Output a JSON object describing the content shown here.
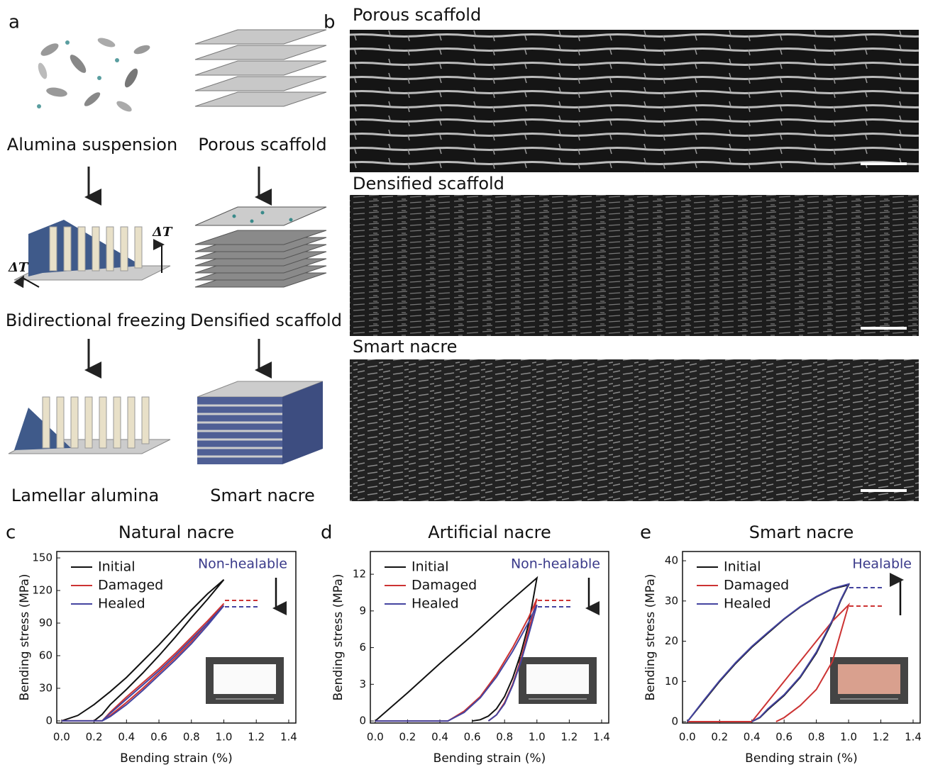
{
  "figure": {
    "panel_labels": [
      "a",
      "b",
      "c",
      "d",
      "e"
    ],
    "schematic_captions": [
      "Alumina suspension",
      "Porous scaffold",
      "Bidirectional freezing",
      "Densified scaffold",
      "Lamellar alumina",
      "Smart nacre"
    ],
    "delta_t": [
      "ΔT",
      "ΔT"
    ],
    "sem_titles": [
      "Porous scaffold",
      "Densified scaffold",
      "Smart nacre"
    ]
  },
  "chart_data": [
    {
      "type": "line",
      "title": "Natural nacre",
      "x_label": "Bending strain (%)",
      "y_label": "Bending stress (MPa)",
      "annotation": "Non-healable",
      "trend": "down",
      "xlim": [
        -0.03,
        1.444
      ],
      "ylim": [
        -2,
        155.9
      ],
      "xticks": [
        {
          "value": 0,
          "label": "0.0"
        },
        0.2,
        0.4,
        0.6,
        0.8,
        {
          "value": 1,
          "label": "1.0"
        },
        1.2,
        1.4
      ],
      "yticks": [
        0,
        30,
        60,
        90,
        120,
        150
      ],
      "series": [
        {
          "name": "Initial",
          "color": "#111111",
          "x": [
            0,
            0.1,
            0.2,
            0.3,
            0.4,
            0.5,
            0.6,
            0.7,
            0.8,
            0.9,
            1.0,
            0.9,
            0.8,
            0.7,
            0.6,
            0.5,
            0.4,
            0.3,
            0.25,
            0.2
          ],
          "values": [
            0,
            5,
            15,
            27,
            40,
            55,
            70,
            86,
            102,
            117,
            130,
            112,
            95,
            77,
            60,
            44,
            29,
            15,
            6,
            0
          ]
        },
        {
          "name": "Damaged",
          "color": "#cc3333",
          "x": [
            0,
            0.25,
            0.3,
            0.4,
            0.5,
            0.6,
            0.7,
            0.8,
            0.9,
            1.0,
            0.9,
            0.8,
            0.7,
            0.6,
            0.5,
            0.4,
            0.3,
            0.25
          ],
          "values": [
            0,
            0,
            8,
            22,
            35,
            48,
            62,
            77,
            92,
            108,
            90,
            73,
            58,
            44,
            30,
            17,
            5,
            0
          ]
        },
        {
          "name": "Healed",
          "color": "#4444a0",
          "x": [
            0,
            0.25,
            0.3,
            0.4,
            0.5,
            0.6,
            0.7,
            0.8,
            0.9,
            1.0,
            0.9,
            0.8,
            0.7,
            0.6,
            0.5,
            0.4,
            0.3,
            0.25
          ],
          "values": [
            0,
            0,
            7,
            20,
            33,
            46,
            60,
            75,
            90,
            106,
            88,
            71,
            56,
            42,
            28,
            15,
            4,
            0
          ]
        }
      ]
    },
    {
      "type": "line",
      "title": "Artificial nacre",
      "x_label": "Bending strain (%)",
      "y_label": "Bending stress (MPa)",
      "annotation": "Non-healable",
      "trend": "down",
      "xlim": [
        -0.03,
        1.444
      ],
      "ylim": [
        -0.17,
        13.86
      ],
      "xticks": [
        {
          "value": 0,
          "label": "0.0"
        },
        0.2,
        0.4,
        0.6,
        0.8,
        {
          "value": 1,
          "label": "1.0"
        },
        1.2,
        1.4
      ],
      "yticks": [
        0,
        3,
        6,
        9,
        12
      ],
      "series": [
        {
          "name": "Initial",
          "color": "#111111",
          "x": [
            0,
            0.2,
            0.4,
            0.6,
            0.8,
            1.0,
            0.95,
            0.9,
            0.85,
            0.8,
            0.75,
            0.7,
            0.65,
            0.6
          ],
          "values": [
            0,
            2.3,
            4.7,
            7.0,
            9.4,
            11.7,
            8,
            5.5,
            3.5,
            2,
            1,
            0.4,
            0.1,
            0
          ]
        },
        {
          "name": "Damaged",
          "color": "#cc3333",
          "x": [
            0,
            0.45,
            0.55,
            0.65,
            0.75,
            0.85,
            0.95,
            1.0,
            0.95,
            0.9,
            0.85,
            0.8,
            0.75,
            0.7
          ],
          "values": [
            0,
            0,
            0.8,
            2,
            3.8,
            6,
            8.5,
            10,
            7.5,
            5,
            3,
            1.5,
            0.5,
            0
          ]
        },
        {
          "name": "Healed",
          "color": "#4444a0",
          "x": [
            0,
            0.45,
            0.55,
            0.65,
            0.75,
            0.85,
            0.95,
            1.0,
            0.95,
            0.9,
            0.85,
            0.8,
            0.75,
            0.7
          ],
          "values": [
            0,
            0,
            0.7,
            1.9,
            3.6,
            5.7,
            8.1,
            9.5,
            7.1,
            4.8,
            2.9,
            1.4,
            0.5,
            0
          ]
        }
      ]
    },
    {
      "type": "line",
      "title": "Smart nacre",
      "x_label": "Bending strain (%)",
      "y_label": "Bending stress (MPa)",
      "annotation": "Healable",
      "trend": "up",
      "xlim": [
        -0.03,
        1.444
      ],
      "ylim": [
        -0.35,
        42.3
      ],
      "xticks": [
        {
          "value": 0,
          "label": "0.0"
        },
        0.2,
        0.4,
        0.6,
        0.8,
        {
          "value": 1,
          "label": "1.0"
        },
        1.2,
        1.4
      ],
      "yticks": [
        0,
        10,
        20,
        30,
        40
      ],
      "series": [
        {
          "name": "Initial",
          "color": "#111111",
          "x": [
            0,
            0.1,
            0.2,
            0.3,
            0.4,
            0.5,
            0.6,
            0.7,
            0.8,
            0.9,
            1.0,
            0.95,
            0.9,
            0.8,
            0.7,
            0.6,
            0.5,
            0.45,
            0.4
          ],
          "values": [
            0,
            5,
            10,
            14.5,
            18.5,
            22,
            25.5,
            28.5,
            31,
            33,
            34,
            30,
            25,
            17,
            11,
            6.5,
            3,
            1,
            0
          ]
        },
        {
          "name": "Damaged",
          "color": "#cc3333",
          "x": [
            0,
            0.4,
            0.5,
            0.6,
            0.7,
            0.8,
            0.9,
            1.0,
            0.95,
            0.9,
            0.8,
            0.7,
            0.6,
            0.55
          ],
          "values": [
            0,
            0,
            5,
            10,
            15,
            20,
            25,
            29,
            22,
            15,
            8,
            4,
            1,
            0
          ]
        },
        {
          "name": "Healed",
          "color": "#4444a0",
          "x": [
            0,
            0.1,
            0.2,
            0.3,
            0.4,
            0.5,
            0.6,
            0.7,
            0.8,
            0.9,
            1.0,
            0.95,
            0.9,
            0.8,
            0.7,
            0.6,
            0.5,
            0.45,
            0.4
          ],
          "values": [
            0,
            5.2,
            10.2,
            14.7,
            18.7,
            22.2,
            25.6,
            28.6,
            31.1,
            33.1,
            34.2,
            30.2,
            25.3,
            17.3,
            11.2,
            6.7,
            3.2,
            1.1,
            0
          ]
        }
      ]
    }
  ]
}
